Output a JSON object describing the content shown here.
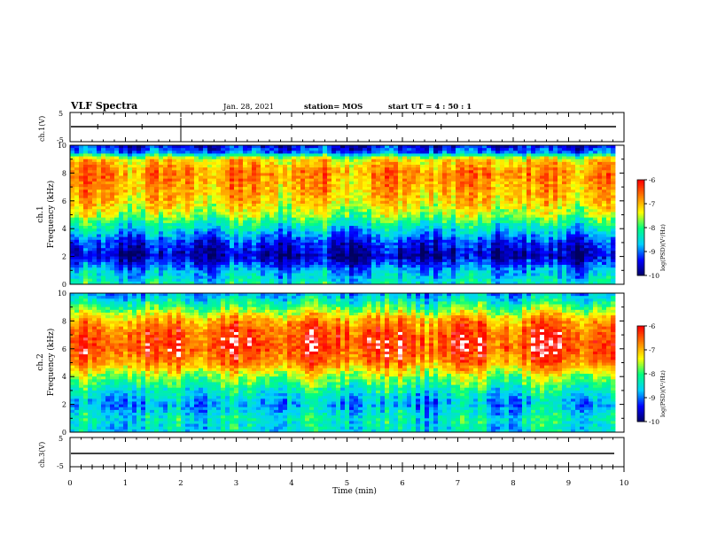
{
  "header": {
    "title": "VLF Spectra",
    "date": "Jan. 28, 2021",
    "station": "station= MOS",
    "start_time": "start UT =  4 : 50 : 1"
  },
  "axes": {
    "xlabel": "Time (min)",
    "x_ticks": [
      "0",
      "1",
      "2",
      "3",
      "4",
      "5",
      "6",
      "7",
      "8",
      "9",
      "10"
    ],
    "ch1_volt_label": "ch.1(V)",
    "ch3_volt_label": "ch.3(V)",
    "volt_ticks": [
      "5",
      "-5"
    ],
    "ch1_freq_label_line1": "ch.1",
    "ch1_freq_label_line2": "Frequency (kHz)",
    "ch2_freq_label_line1": "ch.2",
    "ch2_freq_label_line2": "Frequency (kHz)",
    "freq_ticks": [
      "0",
      "2",
      "4",
      "6",
      "8",
      "10"
    ]
  },
  "colorbar": {
    "label": "log(PSD)(V²/Hz)",
    "ticks": [
      "-6",
      "-7",
      "-8",
      "-9",
      "-10"
    ]
  },
  "chart_data": [
    {
      "type": "line",
      "title": "ch.1(V)",
      "xlabel": "Time (min)",
      "xlim": [
        0,
        10
      ],
      "ylim": [
        -5,
        5
      ],
      "series": [
        {
          "name": "ch.1(V)",
          "x": [
            0,
            9.85
          ],
          "y": [
            0,
            0
          ]
        }
      ]
    },
    {
      "type": "heatmap",
      "title": "ch.1",
      "ylabel": "Frequency (kHz)",
      "xlim": [
        0,
        10
      ],
      "ylim": [
        0,
        10
      ],
      "zlim": [
        -10,
        -6
      ],
      "profile_note_freq_khz": [
        0,
        1,
        2,
        3,
        4,
        5,
        6,
        7,
        8,
        9,
        9.5,
        10
      ],
      "profile_log_psd": [
        -8.3,
        -8.8,
        -9.7,
        -9.3,
        -8.5,
        -7.6,
        -7.1,
        -6.9,
        -6.7,
        -7.2,
        -9.0,
        -9.5
      ]
    },
    {
      "type": "heatmap",
      "title": "ch.2",
      "ylabel": "Frequency (kHz)",
      "xlim": [
        0,
        10
      ],
      "ylim": [
        0,
        10
      ],
      "zlim": [
        -10,
        -6
      ],
      "profile_note_freq_khz": [
        0,
        1,
        2,
        3,
        4,
        5,
        6,
        7,
        8,
        9,
        10
      ],
      "profile_log_psd": [
        -8.5,
        -8.3,
        -8.8,
        -8.3,
        -7.6,
        -6.7,
        -6.3,
        -6.4,
        -6.8,
        -7.9,
        -8.8
      ]
    },
    {
      "type": "line",
      "title": "ch.3(V)",
      "xlabel": "Time (min)",
      "xlim": [
        0,
        10
      ],
      "ylim": [
        -5,
        5
      ],
      "series": [
        {
          "name": "ch.3(V)",
          "x": [
            0,
            9.85
          ],
          "y": [
            0,
            0
          ]
        }
      ]
    }
  ],
  "colors": {
    "background": "#ffffff",
    "axes": "#000000",
    "colormap": [
      "#000060",
      "#0000ff",
      "#00d0ff",
      "#00ff80",
      "#ffff00",
      "#ff8000",
      "#ff0000",
      "#ffffff"
    ]
  }
}
